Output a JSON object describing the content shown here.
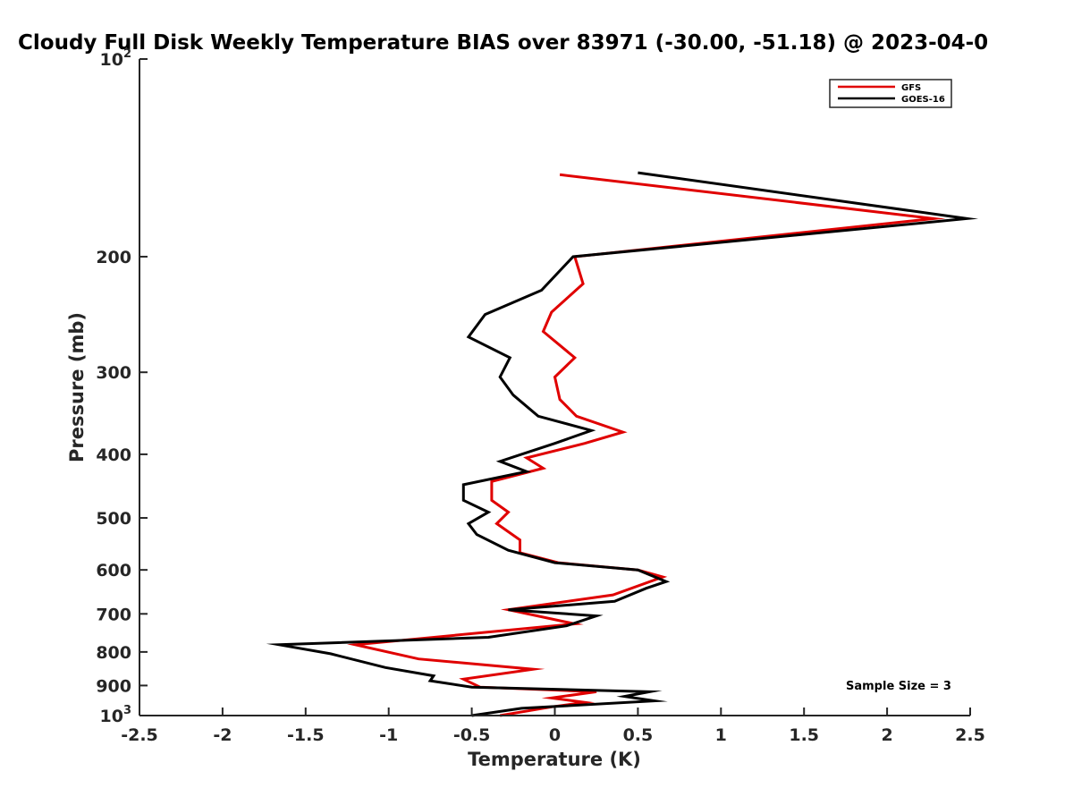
{
  "chart_data": {
    "type": "line",
    "title": "Cloudy Full Disk Weekly Temperature BIAS over 83971 (-30.00, -51.18) @ 2023-04-0",
    "xlabel": "Temperature (K)",
    "ylabel": "Pressure (mb)",
    "xlim": [
      -2.5,
      2.5
    ],
    "ylim": [
      100,
      1000
    ],
    "y_scale": "log",
    "y_reversed": true,
    "grid": false,
    "legend_position": "top-right",
    "x_ticks": [
      "-2.5",
      "-2",
      "-1.5",
      "-1",
      "-0.5",
      "0",
      "0.5",
      "1",
      "1.5",
      "2",
      "2.5"
    ],
    "y_ticks": [
      {
        "value": 100,
        "base": "10",
        "exp": "2"
      },
      {
        "value": 200,
        "base": "200",
        "exp": ""
      },
      {
        "value": 300,
        "base": "300",
        "exp": ""
      },
      {
        "value": 400,
        "base": "400",
        "exp": ""
      },
      {
        "value": 500,
        "base": "500",
        "exp": ""
      },
      {
        "value": 600,
        "base": "600",
        "exp": ""
      },
      {
        "value": 700,
        "base": "700",
        "exp": ""
      },
      {
        "value": 800,
        "base": "800",
        "exp": ""
      },
      {
        "value": 900,
        "base": "900",
        "exp": ""
      },
      {
        "value": 1000,
        "base": "10",
        "exp": "3"
      }
    ],
    "annotation": "Sample Size = 3",
    "series": [
      {
        "name": "GFS",
        "color": "#e00000",
        "points": [
          [
            0.03,
            150
          ],
          [
            2.28,
            175
          ],
          [
            0.12,
            200
          ],
          [
            0.17,
            220
          ],
          [
            -0.02,
            243
          ],
          [
            -0.07,
            260
          ],
          [
            0.12,
            285
          ],
          [
            0.0,
            305
          ],
          [
            0.03,
            330
          ],
          [
            0.13,
            350
          ],
          [
            0.41,
            370
          ],
          [
            0.18,
            385
          ],
          [
            -0.17,
            405
          ],
          [
            -0.07,
            420
          ],
          [
            -0.38,
            440
          ],
          [
            -0.38,
            470
          ],
          [
            -0.28,
            490
          ],
          [
            -0.35,
            510
          ],
          [
            -0.21,
            540
          ],
          [
            -0.21,
            565
          ],
          [
            0.02,
            585
          ],
          [
            0.5,
            600
          ],
          [
            0.65,
            615
          ],
          [
            0.35,
            655
          ],
          [
            -0.28,
            690
          ],
          [
            0.12,
            725
          ],
          [
            -1.2,
            780
          ],
          [
            -0.82,
            820
          ],
          [
            -0.13,
            850
          ],
          [
            -0.55,
            880
          ],
          [
            -0.45,
            905
          ],
          [
            0.25,
            920
          ],
          [
            -0.02,
            940
          ],
          [
            0.18,
            955
          ],
          [
            -0.02,
            970
          ],
          [
            -0.33,
            1000
          ]
        ]
      },
      {
        "name": "GOES-16",
        "color": "#000000",
        "points": [
          [
            0.5,
            149
          ],
          [
            2.48,
            175
          ],
          [
            0.11,
            200
          ],
          [
            -0.08,
            225
          ],
          [
            -0.42,
            245
          ],
          [
            -0.52,
            265
          ],
          [
            -0.27,
            285
          ],
          [
            -0.33,
            305
          ],
          [
            -0.25,
            325
          ],
          [
            -0.1,
            350
          ],
          [
            0.22,
            368
          ],
          [
            0.0,
            385
          ],
          [
            -0.33,
            410
          ],
          [
            -0.17,
            425
          ],
          [
            -0.55,
            445
          ],
          [
            -0.55,
            470
          ],
          [
            -0.4,
            490
          ],
          [
            -0.52,
            510
          ],
          [
            -0.47,
            530
          ],
          [
            -0.28,
            560
          ],
          [
            0.0,
            585
          ],
          [
            0.5,
            600
          ],
          [
            0.67,
            625
          ],
          [
            0.55,
            640
          ],
          [
            0.36,
            670
          ],
          [
            -0.28,
            690
          ],
          [
            0.25,
            705
          ],
          [
            0.07,
            730
          ],
          [
            -0.4,
            760
          ],
          [
            -1.66,
            780
          ],
          [
            -1.35,
            805
          ],
          [
            -1.02,
            845
          ],
          [
            -0.73,
            870
          ],
          [
            -0.75,
            885
          ],
          [
            -0.5,
            905
          ],
          [
            0.57,
            920
          ],
          [
            0.42,
            935
          ],
          [
            0.6,
            950
          ],
          [
            -0.2,
            975
          ],
          [
            -0.5,
            1000
          ]
        ]
      }
    ]
  }
}
